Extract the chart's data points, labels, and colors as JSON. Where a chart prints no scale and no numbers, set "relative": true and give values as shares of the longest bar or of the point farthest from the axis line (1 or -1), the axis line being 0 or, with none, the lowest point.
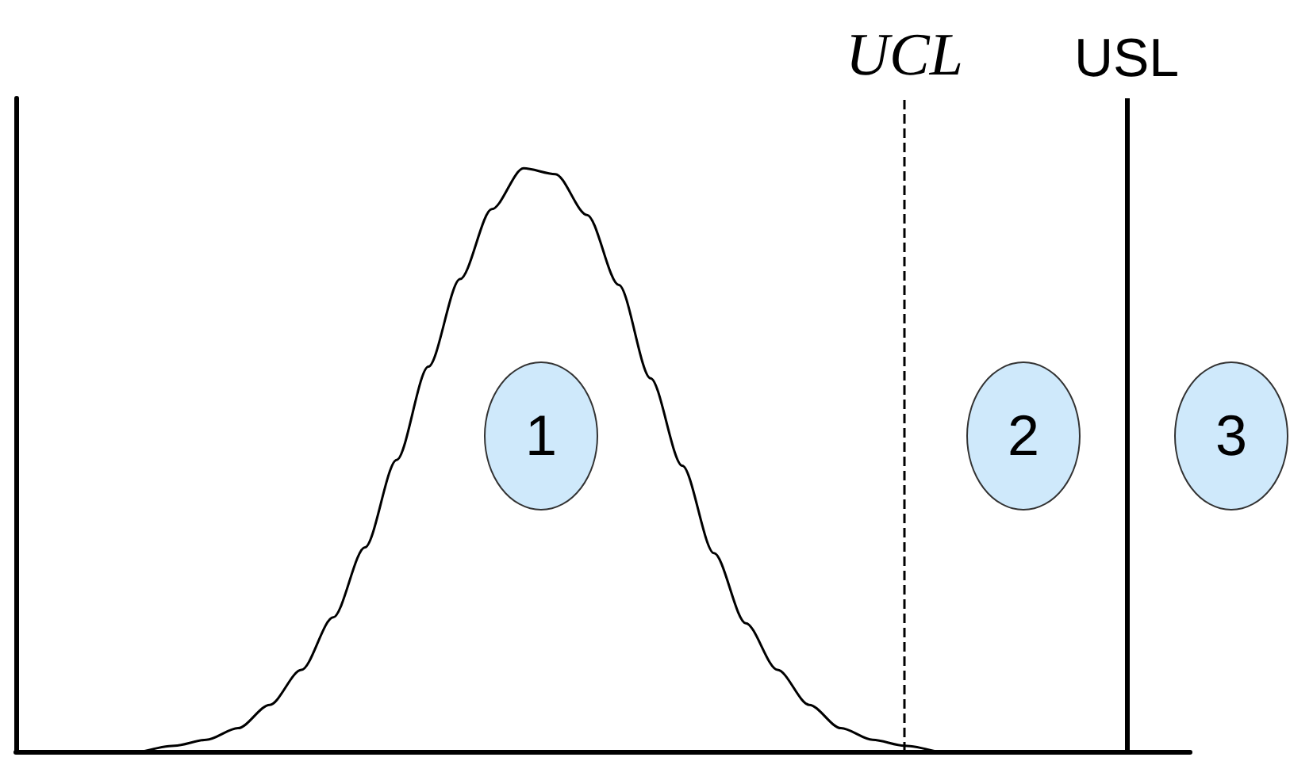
{
  "chart_data": {
    "type": "line",
    "relative": true,
    "color": "#000000",
    "marker": "none",
    "line_style": "solid",
    "categories": [
      null,
      null,
      null,
      null,
      null,
      null,
      null,
      null,
      null,
      null,
      null,
      null,
      null,
      null,
      null,
      null,
      null,
      null,
      null,
      null,
      null,
      null,
      null,
      null,
      null,
      null,
      null,
      null,
      null,
      null,
      null,
      null,
      null,
      null,
      null,
      null,
      null,
      null
    ],
    "values": [
      null,
      null,
      null,
      null,
      0,
      0.01,
      0.02,
      0.04,
      0.08,
      0.14,
      0.23,
      0.35,
      0.5,
      0.66,
      0.81,
      0.93,
      1,
      0.99,
      0.92,
      0.8,
      0.64,
      0.49,
      0.34,
      0.22,
      0.14,
      0.08,
      0.04,
      0.02,
      0.01,
      0,
      null,
      null,
      null,
      null,
      null,
      null,
      null,
      null
    ],
    "annotations": [
      "UCL",
      "USL",
      "1",
      "2",
      "3"
    ]
  }
}
